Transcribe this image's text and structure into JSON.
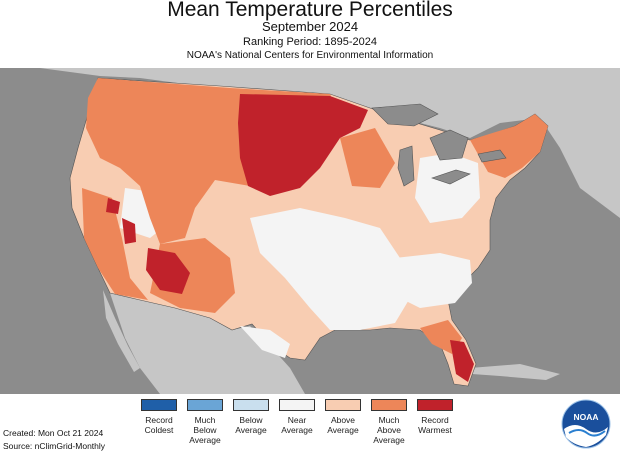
{
  "header": {
    "title": "Mean Temperature Percentiles",
    "period": "September 2024",
    "ranking": "Ranking Period: 1895-2024",
    "agency": "NOAA's National Centers for Environmental Information"
  },
  "legend": [
    {
      "label": "Record\nColdest",
      "color": "#1f5fa8"
    },
    {
      "label": "Much\nBelow\nAverage",
      "color": "#6aa5d6"
    },
    {
      "label": "Below\nAverage",
      "color": "#c9dfee"
    },
    {
      "label": "Near\nAverage",
      "color": "#f4f4f4"
    },
    {
      "label": "Above\nAverage",
      "color": "#f8cdb2"
    },
    {
      "label": "Much\nAbove\nAverage",
      "color": "#ed8659"
    },
    {
      "label": "Record\nWarmest",
      "color": "#c0222b"
    }
  ],
  "footer": {
    "created": "Created: Mon Oct 21 2024",
    "source": "Source: nClimGrid-Monthly"
  },
  "logo": {
    "text": "NOAA"
  },
  "colors": {
    "background": "#8c8c8c",
    "land_other": "#c6c6c6",
    "lakes": "#8c8c8c",
    "near_average": "#f4f4f4",
    "above_average": "#f8cdb2",
    "much_above_average": "#ed8659",
    "record_warmest": "#c0222b"
  }
}
